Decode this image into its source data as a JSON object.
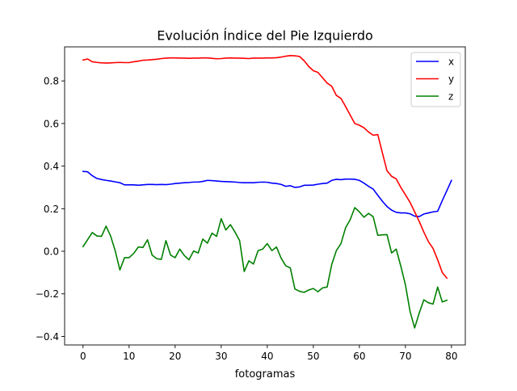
{
  "chart_data": {
    "type": "line",
    "title": "Evolución Índice del Pie Izquierdo",
    "xlabel": "fotogramas",
    "ylabel": "",
    "xlim": [
      -4,
      83
    ],
    "ylim": [
      -0.44,
      0.96
    ],
    "xticks": [
      0,
      10,
      20,
      30,
      40,
      50,
      60,
      70,
      80
    ],
    "xtick_labels": [
      "0",
      "10",
      "20",
      "30",
      "40",
      "50",
      "60",
      "70",
      "80"
    ],
    "yticks": [
      -0.4,
      -0.2,
      0.0,
      0.2,
      0.4,
      0.6,
      0.8
    ],
    "ytick_labels": [
      "−0.4",
      "−0.2",
      "0.0",
      "0.2",
      "0.4",
      "0.6",
      "0.8"
    ],
    "grid": false,
    "legend_position": "top-right",
    "series": [
      {
        "name": "x",
        "color": "#0000ff",
        "values": [
          0.375,
          0.373,
          0.355,
          0.342,
          0.337,
          0.333,
          0.33,
          0.326,
          0.322,
          0.312,
          0.312,
          0.312,
          0.31,
          0.312,
          0.314,
          0.314,
          0.313,
          0.314,
          0.313,
          0.315,
          0.318,
          0.32,
          0.322,
          0.323,
          0.325,
          0.325,
          0.328,
          0.333,
          0.332,
          0.33,
          0.328,
          0.327,
          0.326,
          0.325,
          0.323,
          0.322,
          0.322,
          0.322,
          0.324,
          0.325,
          0.324,
          0.32,
          0.318,
          0.314,
          0.305,
          0.308,
          0.3,
          0.302,
          0.31,
          0.31,
          0.311,
          0.315,
          0.318,
          0.32,
          0.333,
          0.338,
          0.336,
          0.339,
          0.339,
          0.338,
          0.333,
          0.32,
          0.305,
          0.292,
          0.263,
          0.235,
          0.21,
          0.193,
          0.183,
          0.18,
          0.18,
          0.176,
          0.165,
          0.163,
          0.175,
          0.18,
          0.185,
          0.188,
          0.238,
          0.285,
          0.333
        ]
      },
      {
        "name": "y",
        "color": "#ff0000",
        "values": [
          0.898,
          0.903,
          0.89,
          0.887,
          0.885,
          0.884,
          0.885,
          0.886,
          0.887,
          0.886,
          0.886,
          0.89,
          0.893,
          0.897,
          0.898,
          0.9,
          0.902,
          0.905,
          0.907,
          0.908,
          0.908,
          0.907,
          0.907,
          0.906,
          0.907,
          0.907,
          0.908,
          0.908,
          0.906,
          0.904,
          0.905,
          0.907,
          0.908,
          0.907,
          0.907,
          0.906,
          0.905,
          0.907,
          0.907,
          0.907,
          0.908,
          0.908,
          0.909,
          0.912,
          0.916,
          0.919,
          0.918,
          0.915,
          0.895,
          0.868,
          0.848,
          0.84,
          0.815,
          0.79,
          0.775,
          0.732,
          0.718,
          0.68,
          0.64,
          0.6,
          0.592,
          0.58,
          0.56,
          0.545,
          0.548,
          0.462,
          0.378,
          0.352,
          0.34,
          0.3,
          0.265,
          0.23,
          0.185,
          0.14,
          0.09,
          0.045,
          0.013,
          -0.04,
          -0.1,
          -0.126
        ]
      },
      {
        "name": "z",
        "color": "#008000",
        "values": [
          0.022,
          0.055,
          0.088,
          0.072,
          0.07,
          0.118,
          0.071,
          0.001,
          -0.088,
          -0.03,
          -0.03,
          -0.01,
          0.02,
          0.018,
          0.054,
          -0.018,
          -0.035,
          -0.038,
          0.05,
          -0.018,
          -0.03,
          0.01,
          -0.02,
          -0.04,
          0.001,
          -0.008,
          0.057,
          0.038,
          0.085,
          0.07,
          0.153,
          0.1,
          0.125,
          0.09,
          0.05,
          -0.095,
          -0.045,
          -0.06,
          0.003,
          0.01,
          0.036,
          0.003,
          0.02,
          -0.032,
          -0.068,
          -0.078,
          -0.177,
          -0.188,
          -0.193,
          -0.182,
          -0.175,
          -0.19,
          -0.172,
          -0.168,
          -0.062,
          0.003,
          0.036,
          0.11,
          0.148,
          0.205,
          0.185,
          0.16,
          0.178,
          0.162,
          0.075,
          0.077,
          0.078,
          -0.008,
          0.01,
          -0.07,
          -0.158,
          -0.282,
          -0.36,
          -0.29,
          -0.228,
          -0.242,
          -0.248,
          -0.168,
          -0.238,
          -0.23
        ]
      }
    ]
  }
}
